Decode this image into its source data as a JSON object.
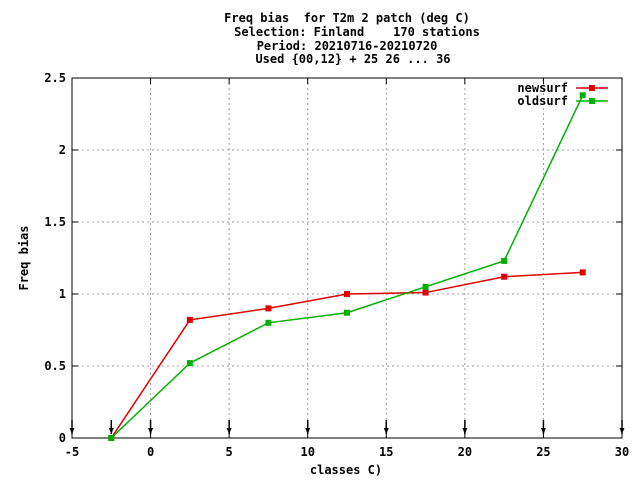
{
  "title_lines": [
    "Freq bias  for T2m 2 patch (deg C)",
    "Selection: Finland    170 stations",
    "Period: 20210716-20210720",
    "Used {00,12} + 25 26 ... 36"
  ],
  "chart_data": {
    "type": "line",
    "xlabel": "classes C)",
    "ylabel": "Freq bias",
    "xlim": [
      -5,
      30
    ],
    "ylim": [
      0,
      2.5
    ],
    "xticks": [
      -5,
      0,
      5,
      10,
      15,
      20,
      25,
      30
    ],
    "yticks": [
      0,
      0.5,
      1,
      1.5,
      2,
      2.5
    ],
    "xtick_labels": [
      "-5",
      "0",
      "5",
      "10",
      "15",
      "20",
      "25",
      "30"
    ],
    "ytick_labels": [
      "0",
      "0.5",
      "1",
      "1.5",
      "2",
      "2.5"
    ],
    "grid": true,
    "legend_position": "top-right",
    "series": [
      {
        "name": "newsurf",
        "color": "#e00000",
        "x": [
          -2.5,
          2.5,
          7.5,
          12.5,
          17.5,
          22.5,
          27.5
        ],
        "y": [
          0.0,
          0.82,
          0.9,
          1.0,
          1.01,
          1.12,
          1.15
        ]
      },
      {
        "name": "oldsurf",
        "color": "#00b000",
        "x": [
          -2.5,
          2.5,
          7.5,
          12.5,
          17.5,
          22.5,
          27.5
        ],
        "y": [
          0.0,
          0.52,
          0.8,
          0.87,
          1.05,
          1.23,
          2.38
        ]
      }
    ],
    "arrow_markers_x": [
      -5,
      -2.5,
      0,
      5,
      10,
      15,
      20,
      25,
      30
    ]
  }
}
